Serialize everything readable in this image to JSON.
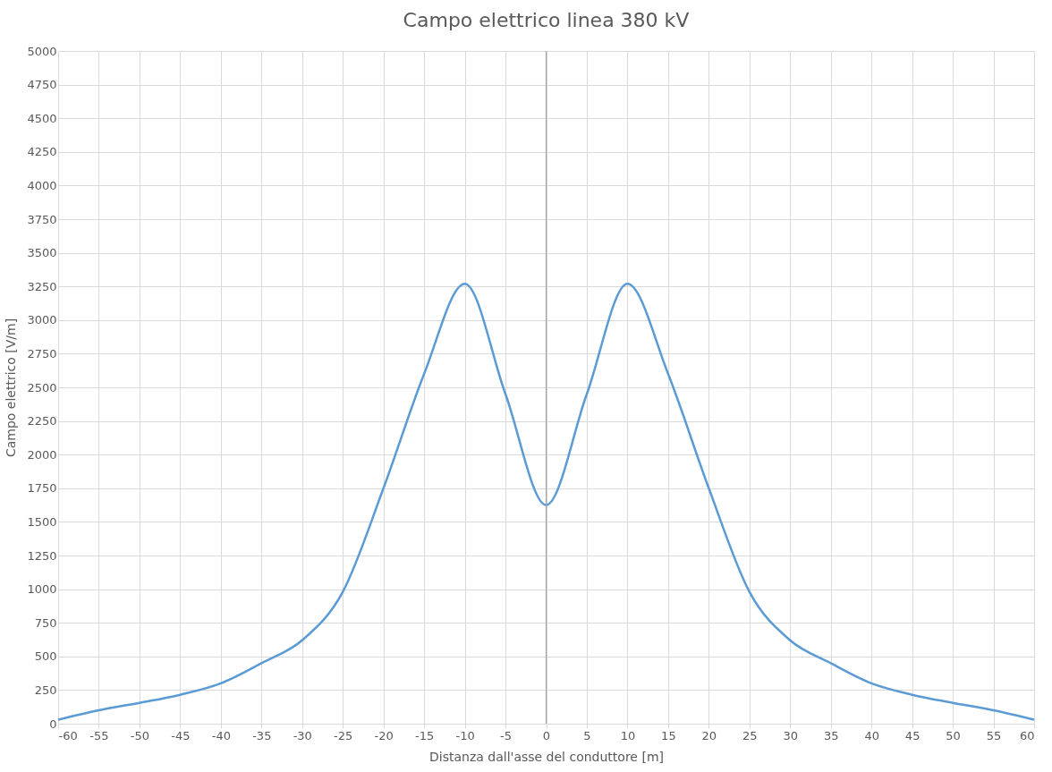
{
  "chart_data": {
    "type": "line",
    "title": "Campo elettrico linea 380 kV",
    "xlabel": "Distanza dall'asse del conduttore [m]",
    "ylabel": "Campo elettrico [V/m]",
    "x": [
      -60,
      -55,
      -50,
      -45,
      -40,
      -35,
      -30,
      -25,
      -20,
      -15,
      -10,
      -5,
      0,
      5,
      10,
      15,
      20,
      25,
      30,
      35,
      40,
      45,
      50,
      55,
      60
    ],
    "series": [
      {
        "color": "#5b9bd5",
        "values": [
          30,
          100,
          155,
          215,
          300,
          450,
          620,
          980,
          1750,
          2600,
          3270,
          2450,
          1625,
          2450,
          3270,
          2600,
          1750,
          980,
          620,
          450,
          300,
          215,
          155,
          100,
          30
        ]
      }
    ],
    "xlim": [
      -60,
      60
    ],
    "xticks": [
      -60,
      -55,
      -50,
      -45,
      -40,
      -35,
      -30,
      -25,
      -20,
      -15,
      -10,
      -5,
      0,
      5,
      10,
      15,
      20,
      25,
      30,
      35,
      40,
      45,
      50,
      55,
      60
    ],
    "ylim": [
      0,
      5000
    ],
    "yticks": [
      0,
      250,
      500,
      750,
      1000,
      1250,
      1500,
      1750,
      2000,
      2250,
      2500,
      2750,
      3000,
      3250,
      3500,
      3750,
      4000,
      4250,
      4500,
      4750,
      5000
    ],
    "grid": true,
    "marker": "none",
    "line_style": "solid",
    "ref_lines": [
      {
        "axis": "x",
        "value": 0,
        "color": "#a6a6a6"
      }
    ]
  }
}
